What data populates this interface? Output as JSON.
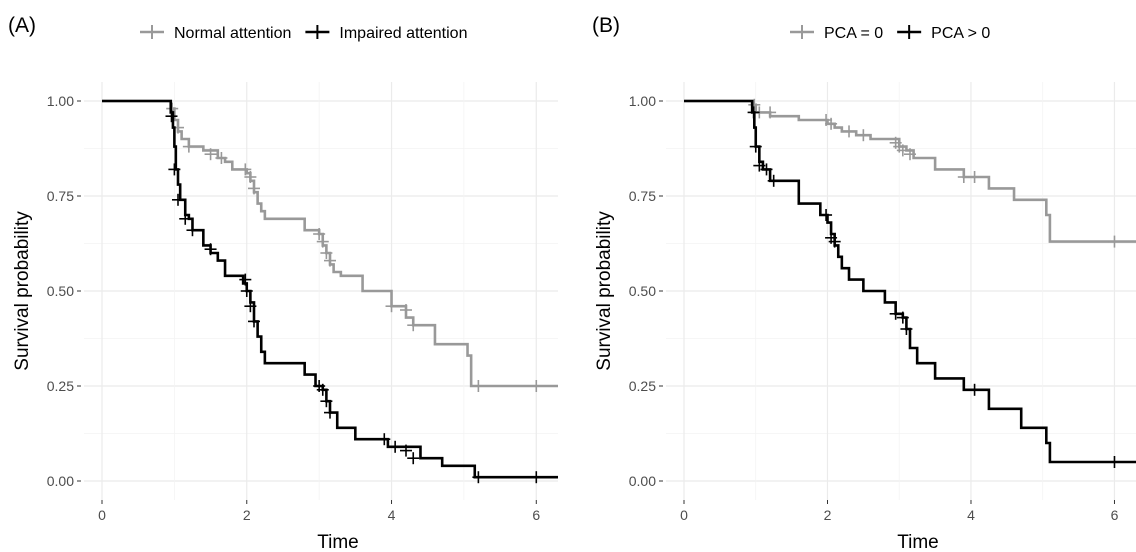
{
  "chart_data": [
    {
      "type": "line",
      "panel_label": "(A)",
      "xlabel": "Time",
      "ylabel": "Survival probability",
      "xlim": [
        0,
        6.3
      ],
      "ylim": [
        0,
        1
      ],
      "x_ticks": [
        0,
        2,
        4,
        6
      ],
      "y_ticks": [
        0,
        0.25,
        0.5,
        0.75,
        1.0
      ],
      "x_tick_labels": [
        "0",
        "2",
        "4",
        "6"
      ],
      "y_tick_labels": [
        "0.00",
        "0.25",
        "0.50",
        "0.75",
        "1.00"
      ],
      "grid": true,
      "legend_position": "top",
      "series": [
        {
          "name": "Normal attention",
          "color": "#999999",
          "step": [
            [
              0,
              1.0
            ],
            [
              0.95,
              0.98
            ],
            [
              1.0,
              0.95
            ],
            [
              1.05,
              0.92
            ],
            [
              1.1,
              0.9
            ],
            [
              1.2,
              0.88
            ],
            [
              1.4,
              0.87
            ],
            [
              1.6,
              0.85
            ],
            [
              1.7,
              0.84
            ],
            [
              1.8,
              0.82
            ],
            [
              2.0,
              0.81
            ],
            [
              2.05,
              0.79
            ],
            [
              2.1,
              0.76
            ],
            [
              2.15,
              0.73
            ],
            [
              2.2,
              0.71
            ],
            [
              2.25,
              0.69
            ],
            [
              2.8,
              0.66
            ],
            [
              3.0,
              0.65
            ],
            [
              3.05,
              0.62
            ],
            [
              3.1,
              0.6
            ],
            [
              3.15,
              0.57
            ],
            [
              3.2,
              0.55
            ],
            [
              3.3,
              0.54
            ],
            [
              3.6,
              0.5
            ],
            [
              4.0,
              0.46
            ],
            [
              4.2,
              0.43
            ],
            [
              4.3,
              0.41
            ],
            [
              4.6,
              0.36
            ],
            [
              5.05,
              0.33
            ],
            [
              5.1,
              0.25
            ],
            [
              6.3,
              0.25
            ]
          ],
          "censor": [
            [
              0.97,
              0.98
            ],
            [
              1.05,
              0.93
            ],
            [
              1.2,
              0.88
            ],
            [
              1.5,
              0.86
            ],
            [
              1.65,
              0.85
            ],
            [
              1.98,
              0.82
            ],
            [
              2.05,
              0.8
            ],
            [
              2.1,
              0.77
            ],
            [
              3.0,
              0.65
            ],
            [
              3.05,
              0.63
            ],
            [
              3.1,
              0.6
            ],
            [
              3.15,
              0.58
            ],
            [
              4.0,
              0.46
            ],
            [
              4.2,
              0.45
            ],
            [
              4.3,
              0.41
            ],
            [
              5.2,
              0.25
            ],
            [
              6.0,
              0.25
            ]
          ]
        },
        {
          "name": "Impaired attention",
          "color": "#000000",
          "step": [
            [
              0,
              1.0
            ],
            [
              0.95,
              0.97
            ],
            [
              0.98,
              0.93
            ],
            [
              1.0,
              0.88
            ],
            [
              1.02,
              0.82
            ],
            [
              1.05,
              0.78
            ],
            [
              1.08,
              0.74
            ],
            [
              1.15,
              0.7
            ],
            [
              1.2,
              0.69
            ],
            [
              1.25,
              0.66
            ],
            [
              1.4,
              0.62
            ],
            [
              1.5,
              0.6
            ],
            [
              1.6,
              0.58
            ],
            [
              1.7,
              0.54
            ],
            [
              1.95,
              0.52
            ],
            [
              2.0,
              0.5
            ],
            [
              2.05,
              0.47
            ],
            [
              2.1,
              0.42
            ],
            [
              2.15,
              0.38
            ],
            [
              2.2,
              0.34
            ],
            [
              2.25,
              0.31
            ],
            [
              2.8,
              0.28
            ],
            [
              2.95,
              0.25
            ],
            [
              3.05,
              0.24
            ],
            [
              3.1,
              0.21
            ],
            [
              3.15,
              0.18
            ],
            [
              3.25,
              0.14
            ],
            [
              3.5,
              0.11
            ],
            [
              3.95,
              0.09
            ],
            [
              4.4,
              0.06
            ],
            [
              4.7,
              0.04
            ],
            [
              5.15,
              0.01
            ],
            [
              6.3,
              0.01
            ]
          ],
          "censor": [
            [
              0.96,
              0.96
            ],
            [
              1.0,
              0.82
            ],
            [
              1.05,
              0.74
            ],
            [
              1.15,
              0.69
            ],
            [
              1.25,
              0.66
            ],
            [
              1.5,
              0.61
            ],
            [
              1.98,
              0.53
            ],
            [
              2.0,
              0.5
            ],
            [
              2.05,
              0.46
            ],
            [
              2.1,
              0.42
            ],
            [
              3.0,
              0.25
            ],
            [
              3.05,
              0.24
            ],
            [
              3.1,
              0.21
            ],
            [
              3.15,
              0.18
            ],
            [
              3.9,
              0.11
            ],
            [
              4.05,
              0.09
            ],
            [
              4.2,
              0.08
            ],
            [
              4.3,
              0.06
            ],
            [
              5.2,
              0.01
            ],
            [
              6.0,
              0.01
            ]
          ]
        }
      ]
    },
    {
      "type": "line",
      "panel_label": "(B)",
      "xlabel": "Time",
      "ylabel": "Survival probability",
      "xlim": [
        0,
        6.3
      ],
      "ylim": [
        0,
        1
      ],
      "x_ticks": [
        0,
        2,
        4,
        6
      ],
      "y_ticks": [
        0,
        0.25,
        0.5,
        0.75,
        1.0
      ],
      "x_tick_labels": [
        "0",
        "2",
        "4",
        "6"
      ],
      "y_tick_labels": [
        "0.00",
        "0.25",
        "0.50",
        "0.75",
        "1.00"
      ],
      "grid": true,
      "legend_position": "top",
      "series": [
        {
          "name": "PCA = 0",
          "color": "#999999",
          "step": [
            [
              0,
              1.0
            ],
            [
              0.95,
              0.99
            ],
            [
              1.0,
              0.97
            ],
            [
              1.2,
              0.96
            ],
            [
              1.6,
              0.95
            ],
            [
              2.0,
              0.94
            ],
            [
              2.1,
              0.93
            ],
            [
              2.2,
              0.92
            ],
            [
              2.4,
              0.91
            ],
            [
              2.6,
              0.9
            ],
            [
              3.0,
              0.88
            ],
            [
              3.1,
              0.87
            ],
            [
              3.2,
              0.85
            ],
            [
              3.5,
              0.82
            ],
            [
              3.9,
              0.8
            ],
            [
              4.25,
              0.77
            ],
            [
              4.6,
              0.74
            ],
            [
              5.05,
              0.7
            ],
            [
              5.1,
              0.63
            ],
            [
              6.3,
              0.63
            ]
          ],
          "censor": [
            [
              0.98,
              0.99
            ],
            [
              1.05,
              0.97
            ],
            [
              1.2,
              0.97
            ],
            [
              1.98,
              0.95
            ],
            [
              2.05,
              0.94
            ],
            [
              2.3,
              0.92
            ],
            [
              2.5,
              0.91
            ],
            [
              2.95,
              0.89
            ],
            [
              3.0,
              0.88
            ],
            [
              3.05,
              0.87
            ],
            [
              3.15,
              0.86
            ],
            [
              3.9,
              0.8
            ],
            [
              4.05,
              0.8
            ],
            [
              6.0,
              0.63
            ]
          ]
        },
        {
          "name": "PCA > 0",
          "color": "#000000",
          "step": [
            [
              0,
              1.0
            ],
            [
              0.95,
              0.97
            ],
            [
              0.98,
              0.93
            ],
            [
              1.0,
              0.88
            ],
            [
              1.05,
              0.84
            ],
            [
              1.1,
              0.82
            ],
            [
              1.2,
              0.79
            ],
            [
              1.6,
              0.73
            ],
            [
              1.9,
              0.7
            ],
            [
              2.0,
              0.68
            ],
            [
              2.05,
              0.65
            ],
            [
              2.1,
              0.62
            ],
            [
              2.15,
              0.59
            ],
            [
              2.2,
              0.56
            ],
            [
              2.3,
              0.53
            ],
            [
              2.5,
              0.5
            ],
            [
              2.8,
              0.47
            ],
            [
              2.95,
              0.44
            ],
            [
              3.05,
              0.43
            ],
            [
              3.1,
              0.4
            ],
            [
              3.15,
              0.35
            ],
            [
              3.25,
              0.31
            ],
            [
              3.5,
              0.27
            ],
            [
              3.9,
              0.24
            ],
            [
              4.25,
              0.19
            ],
            [
              4.7,
              0.14
            ],
            [
              5.05,
              0.1
            ],
            [
              5.1,
              0.05
            ],
            [
              6.3,
              0.05
            ]
          ],
          "censor": [
            [
              0.97,
              0.97
            ],
            [
              1.0,
              0.88
            ],
            [
              1.05,
              0.83
            ],
            [
              1.15,
              0.82
            ],
            [
              1.25,
              0.79
            ],
            [
              1.98,
              0.7
            ],
            [
              2.05,
              0.64
            ],
            [
              2.1,
              0.63
            ],
            [
              2.95,
              0.44
            ],
            [
              3.05,
              0.43
            ],
            [
              3.1,
              0.4
            ],
            [
              4.05,
              0.24
            ],
            [
              6.0,
              0.05
            ]
          ]
        }
      ]
    }
  ]
}
